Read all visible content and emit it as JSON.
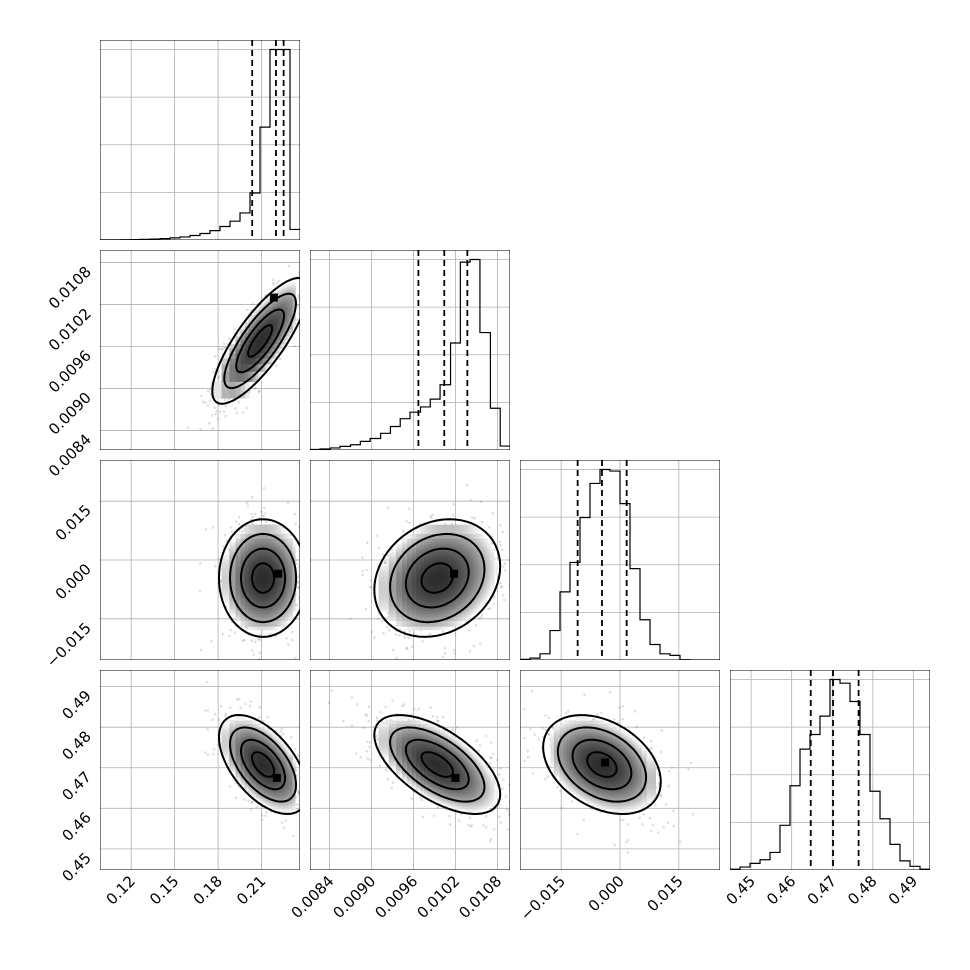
{
  "chart_data": {
    "type": "corner",
    "grid": true,
    "parameters": [
      {
        "range": [
          0.0985,
          0.2365
        ],
        "ticks": [
          0.12,
          0.15,
          0.18,
          0.21
        ],
        "tick_labels": [
          "0.12",
          "0.15",
          "0.18",
          "0.21"
        ]
      },
      {
        "range": [
          0.00812,
          0.01098
        ],
        "ticks": [
          0.0084,
          0.009,
          0.0096,
          0.0102,
          0.0108
        ],
        "tick_labels": [
          "0.0084",
          "0.0090",
          "0.0096",
          "0.0102",
          "0.0108"
        ]
      },
      {
        "range": [
          -0.0255,
          0.0255
        ],
        "ticks": [
          -0.015,
          0.0,
          0.015
        ],
        "tick_labels": [
          "−0.015",
          "0.000",
          "0.015"
        ]
      },
      {
        "range": [
          0.4448,
          0.4941
        ],
        "ticks": [
          0.45,
          0.46,
          0.47,
          0.48,
          0.49
        ],
        "tick_labels": [
          "0.45",
          "0.46",
          "0.47",
          "0.48",
          "0.49"
        ]
      }
    ],
    "histograms": [
      {
        "parameter": 0,
        "edges": [
          0.0985,
          0.1054,
          0.1123,
          0.1192,
          0.1261,
          0.133,
          0.1399,
          0.1468,
          0.1537,
          0.1606,
          0.1675,
          0.1744,
          0.1813,
          0.1882,
          0.1951,
          0.202,
          0.2089,
          0.2158,
          0.2227,
          0.2296,
          0.2365
        ],
        "counts": [
          1,
          1,
          2,
          3,
          5,
          8,
          12,
          18,
          26,
          38,
          55,
          80,
          115,
          160,
          230,
          400,
          960,
          1620,
          1620,
          90
        ],
        "quantiles": [
          0.2035,
          0.2199,
          0.2252
        ]
      },
      {
        "parameter": 1,
        "edges": [
          0.00812,
          0.00826,
          0.00841,
          0.00855,
          0.0087,
          0.00884,
          0.00898,
          0.00913,
          0.00927,
          0.00941,
          0.00955,
          0.0097,
          0.00984,
          0.00998,
          0.01013,
          0.01027,
          0.01041,
          0.01055,
          0.0107,
          0.01084,
          0.01098
        ],
        "counts": [
          2,
          4,
          8,
          14,
          20,
          33,
          44,
          64,
          90,
          120,
          145,
          165,
          195,
          250,
          410,
          720,
          730,
          450,
          160,
          15
        ],
        "quantiles": [
          0.00967,
          0.01004,
          0.01037
        ]
      },
      {
        "parameter": 2,
        "edges": [
          -0.0255,
          -0.02295,
          -0.0204,
          -0.01785,
          -0.0153,
          -0.01275,
          -0.0102,
          -0.00765,
          -0.0051,
          -0.00255,
          0.0,
          0.00255,
          0.0051,
          0.00765,
          0.0102,
          0.01275,
          0.0153,
          0.01785,
          0.0204,
          0.02295,
          0.0255
        ],
        "counts": [
          4,
          12,
          40,
          190,
          440,
          630,
          920,
          1140,
          1230,
          1220,
          1010,
          590,
          260,
          100,
          40,
          30,
          2,
          0,
          0,
          0
        ],
        "quantiles": [
          -0.0108,
          -0.0046,
          0.0017
        ]
      },
      {
        "parameter": 3,
        "edges": [
          0.4448,
          0.44727,
          0.44973,
          0.4522,
          0.45466,
          0.45712,
          0.45959,
          0.46206,
          0.46452,
          0.46698,
          0.46945,
          0.47192,
          0.47438,
          0.47684,
          0.47931,
          0.48178,
          0.48424,
          0.4867,
          0.48917,
          0.49164,
          0.4941
        ],
        "counts": [
          2,
          8,
          18,
          28,
          48,
          122,
          230,
          330,
          370,
          420,
          520,
          510,
          460,
          370,
          215,
          140,
          70,
          25,
          10,
          2
        ],
        "quantiles": [
          0.4647,
          0.4702,
          0.4765
        ]
      }
    ],
    "pairs": [
      {
        "x_param": 0,
        "y_param": 1,
        "mean": [
          0.209,
          0.00968
        ],
        "sd": [
          0.0165,
          0.00045
        ],
        "rho": 0.8,
        "peak": [
          0.2185,
          0.0103
        ]
      },
      {
        "x_param": 0,
        "y_param": 2,
        "mean": [
          0.211,
          -0.0046
        ],
        "sd": [
          0.0152,
          0.0075
        ],
        "rho": 0.0,
        "peak": [
          0.2215,
          -0.0035
        ]
      },
      {
        "x_param": 1,
        "y_param": 2,
        "mean": [
          0.00994,
          -0.0046
        ],
        "sd": [
          0.00045,
          0.0075
        ],
        "rho": 0.2,
        "peak": [
          0.01018,
          -0.0035
        ]
      },
      {
        "x_param": 0,
        "y_param": 3,
        "mean": [
          0.211,
          0.4708
        ],
        "sd": [
          0.0152,
          0.0061
        ],
        "rho": -0.55,
        "peak": [
          0.2205,
          0.4675
        ]
      },
      {
        "x_param": 1,
        "y_param": 3,
        "mean": [
          0.00994,
          0.4708
        ],
        "sd": [
          0.00045,
          0.0061
        ],
        "rho": -0.6,
        "peak": [
          0.0102,
          0.4675
        ]
      },
      {
        "x_param": 2,
        "y_param": 3,
        "mean": [
          -0.0046,
          0.4708
        ],
        "sd": [
          0.0075,
          0.0061
        ],
        "rho": -0.35,
        "peak": [
          -0.0038,
          0.4713
        ]
      }
    ]
  }
}
